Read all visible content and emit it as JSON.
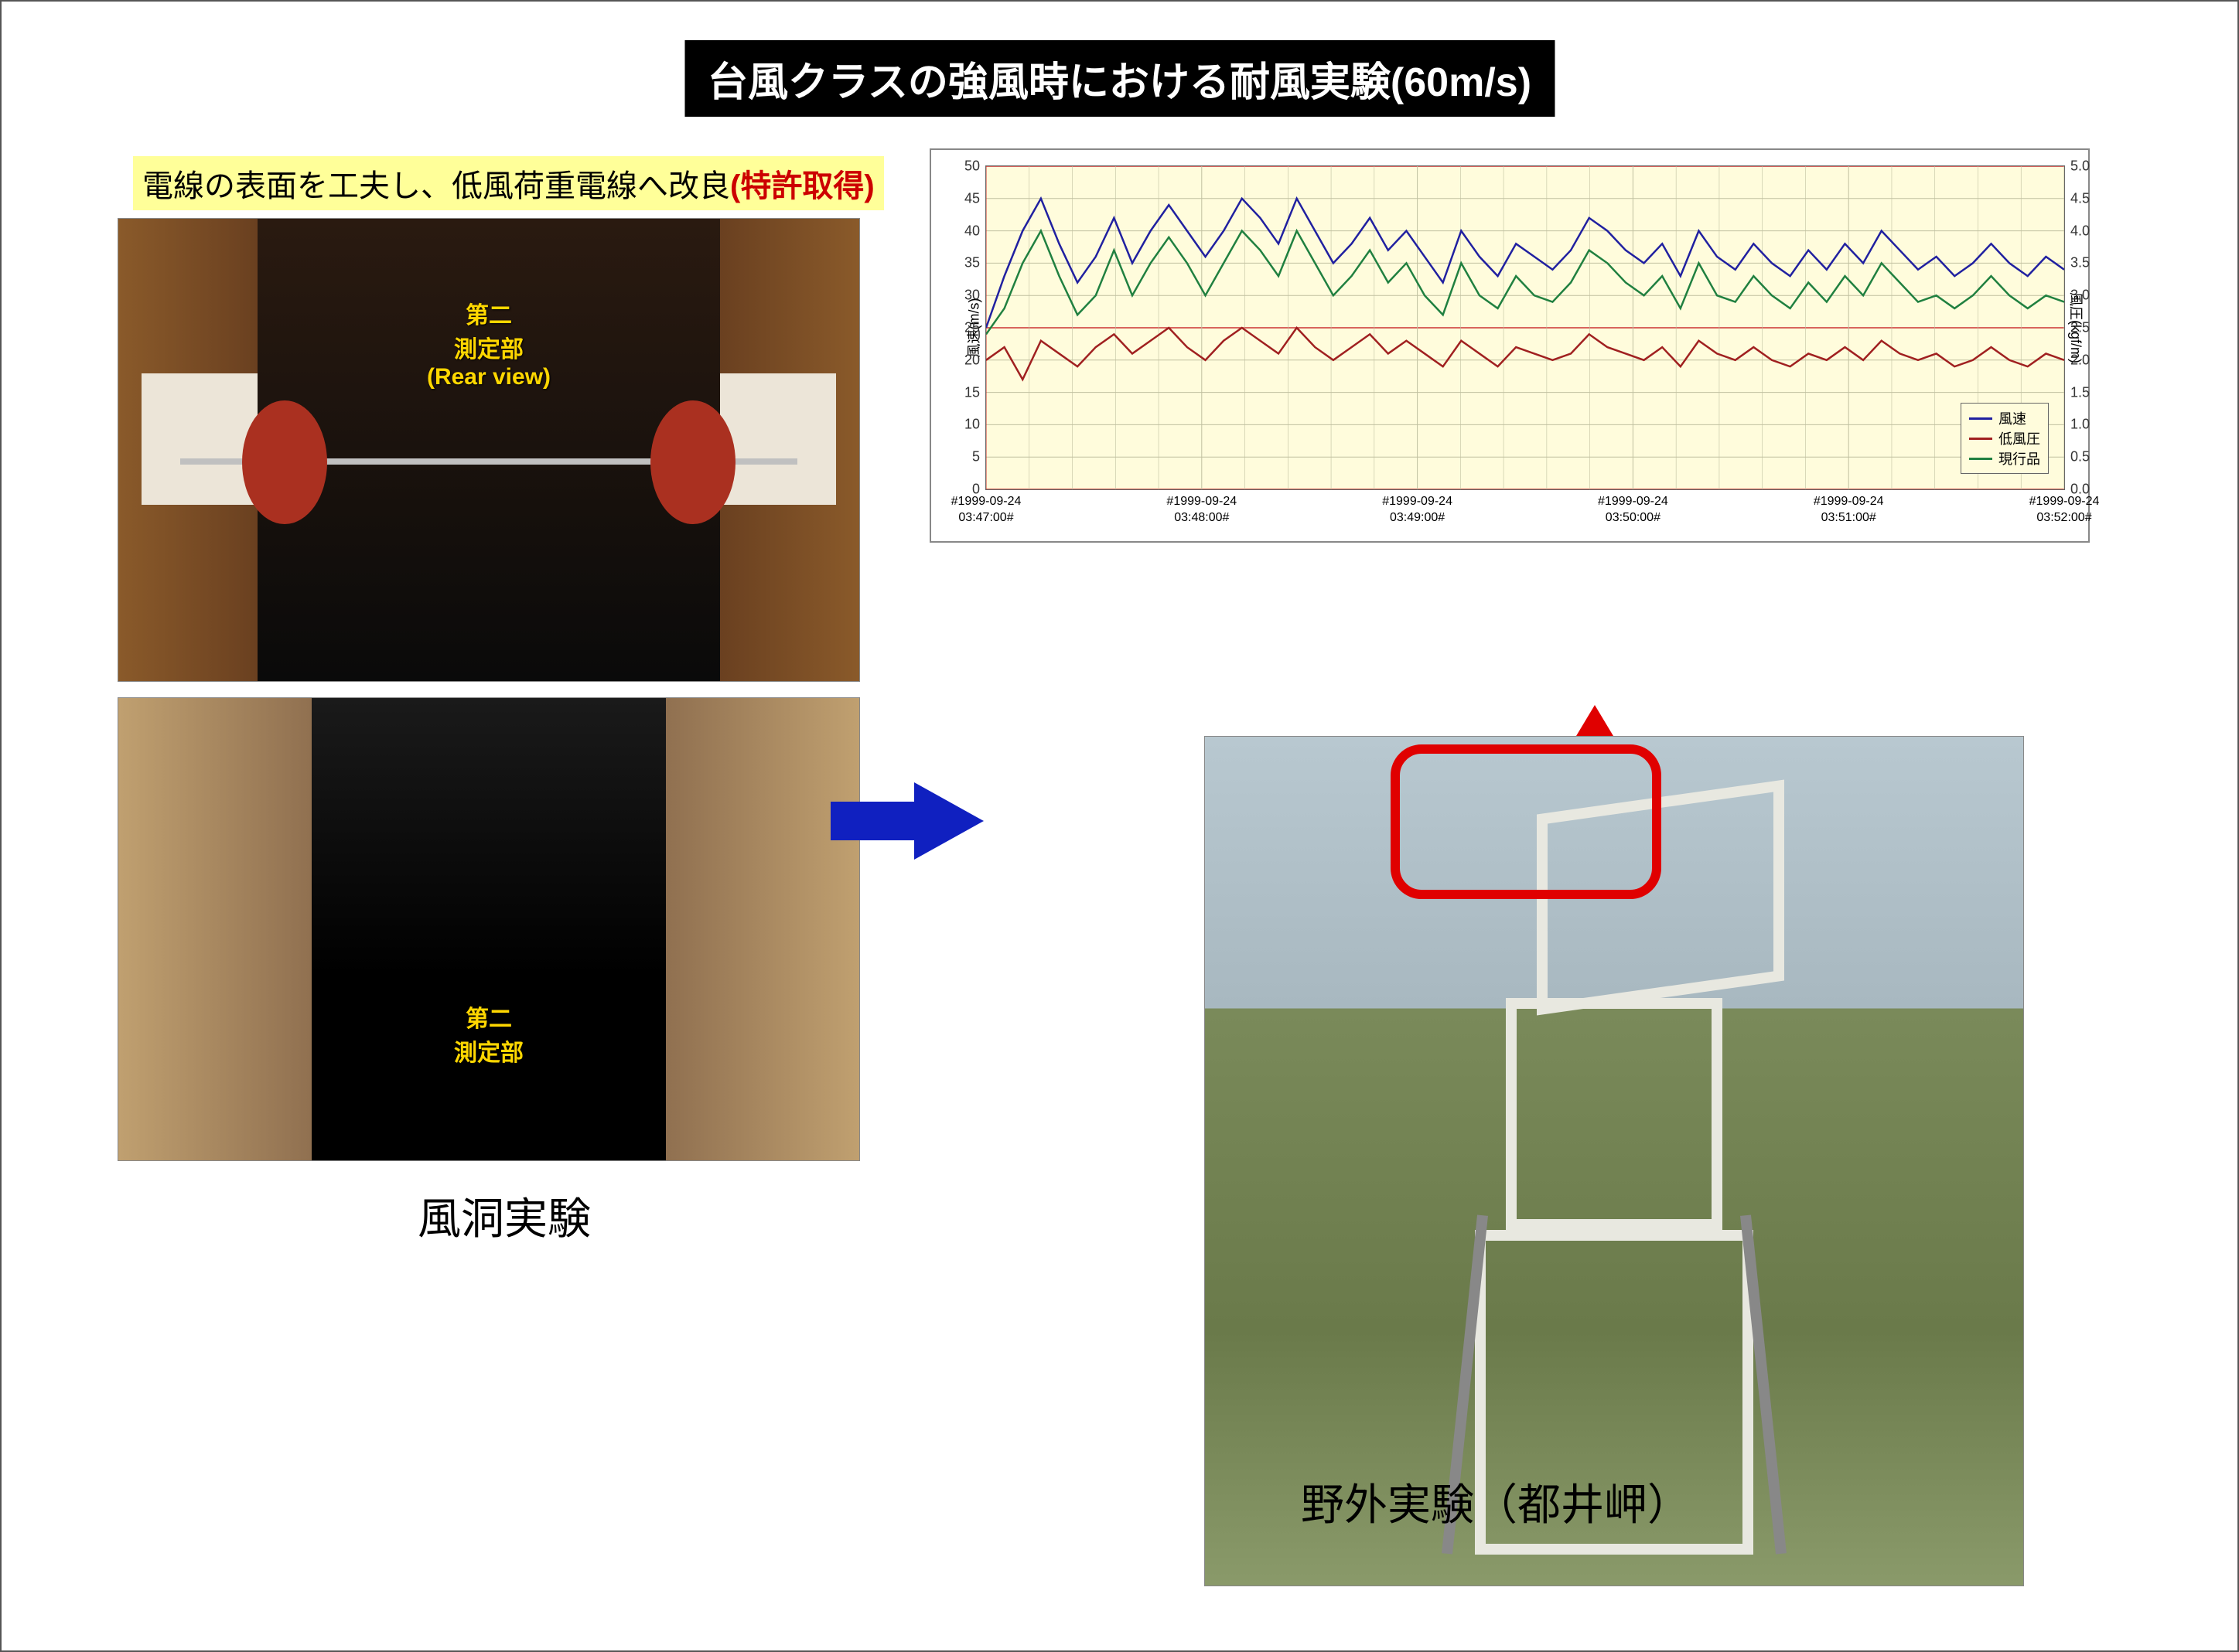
{
  "title": "台風クラスの強風時における耐風実験(60m/s)",
  "subtitle_main": "電線の表面を工夫し、低風荷重電線へ改良",
  "subtitle_patent": "(特許取得)",
  "photo_top": {
    "line1": "第二",
    "line2": "測定部",
    "line3": "(Rear view)"
  },
  "photo_bottom": {
    "line1": "第二",
    "line2": "測定部"
  },
  "caption_left": "風洞実験",
  "caption_right": "野外実験（都井岬）",
  "chart": {
    "type": "line",
    "background_color": "#fffcdc",
    "grid_color_major": "#cc3333",
    "grid_color_minor": "#c0c0a0",
    "y_left": {
      "label": "風速(m/s)",
      "min": 0,
      "max": 50,
      "step": 5
    },
    "y_right": {
      "label": "風圧(kgf/m)",
      "min": 0.0,
      "max": 5.0,
      "step": 0.5
    },
    "x_ticks": [
      "#1999-09-24\n03:47:00#",
      "#1999-09-24\n03:48:00#",
      "#1999-09-24\n03:49:00#",
      "#1999-09-24\n03:50:00#",
      "#1999-09-24\n03:51:00#",
      "#1999-09-24\n03:52:00#"
    ],
    "series": [
      {
        "name": "風速",
        "color": "#2020a0",
        "data": [
          25,
          33,
          40,
          45,
          38,
          32,
          36,
          42,
          35,
          40,
          44,
          40,
          36,
          40,
          45,
          42,
          38,
          45,
          40,
          35,
          38,
          42,
          37,
          40,
          36,
          32,
          40,
          36,
          33,
          38,
          36,
          34,
          37,
          42,
          40,
          37,
          35,
          38,
          33,
          40,
          36,
          34,
          38,
          35,
          33,
          37,
          34,
          38,
          35,
          40,
          37,
          34,
          36,
          33,
          35,
          38,
          35,
          33,
          36,
          34
        ]
      },
      {
        "name": "低風圧",
        "color": "#a02020",
        "data": [
          20,
          22,
          17,
          23,
          21,
          19,
          22,
          24,
          21,
          23,
          25,
          22,
          20,
          23,
          25,
          23,
          21,
          25,
          22,
          20,
          22,
          24,
          21,
          23,
          21,
          19,
          23,
          21,
          19,
          22,
          21,
          20,
          21,
          24,
          22,
          21,
          20,
          22,
          19,
          23,
          21,
          20,
          22,
          20,
          19,
          21,
          20,
          22,
          20,
          23,
          21,
          20,
          21,
          19,
          20,
          22,
          20,
          19,
          21,
          20
        ]
      },
      {
        "name": "現行品",
        "color": "#208040",
        "data": [
          24,
          28,
          35,
          40,
          33,
          27,
          30,
          37,
          30,
          35,
          39,
          35,
          30,
          35,
          40,
          37,
          33,
          40,
          35,
          30,
          33,
          37,
          32,
          35,
          30,
          27,
          35,
          30,
          28,
          33,
          30,
          29,
          32,
          37,
          35,
          32,
          30,
          33,
          28,
          35,
          30,
          29,
          33,
          30,
          28,
          32,
          29,
          33,
          30,
          35,
          32,
          29,
          30,
          28,
          30,
          33,
          30,
          28,
          30,
          29
        ]
      }
    ]
  },
  "colors": {
    "title_bg": "#000000",
    "title_fg": "#ffffff",
    "subtitle_bg": "#ffff99",
    "patent_fg": "#cc0000",
    "photo_label_fg": "#ffd700",
    "arrow_blue": "#1020c0",
    "arrow_red": "#e00000",
    "highlight_red": "#e00000"
  }
}
